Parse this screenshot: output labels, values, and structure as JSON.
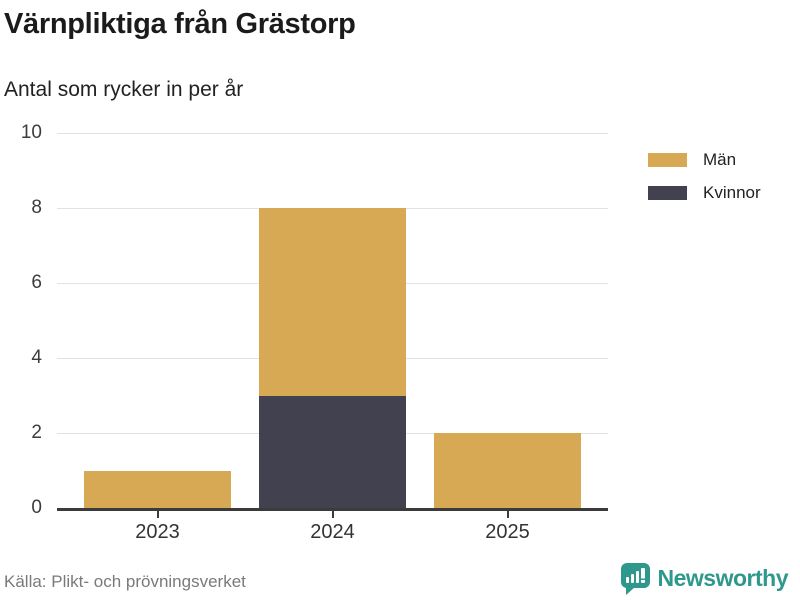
{
  "header": {
    "title": "Värnpliktiga från Grästorp",
    "subtitle": "Antal som rycker in per år"
  },
  "chart_data": {
    "type": "bar",
    "stacked": true,
    "title": "Värnpliktiga från Grästorp",
    "subtitle": "Antal som rycker in per år",
    "categories": [
      "2023",
      "2024",
      "2025"
    ],
    "series": [
      {
        "name": "Män",
        "color": "#d8a955",
        "values": [
          1,
          5,
          2
        ]
      },
      {
        "name": "Kvinnor",
        "color": "#424150",
        "values": [
          0,
          3,
          0
        ]
      }
    ],
    "stack_order_bottom_to_top": [
      "Kvinnor",
      "Män"
    ],
    "totals": [
      1,
      8,
      2
    ],
    "xlabel": "",
    "ylabel": "",
    "ylim": [
      0,
      10
    ],
    "yticks": [
      0,
      2,
      4,
      6,
      8,
      10
    ],
    "grid": true,
    "legend_position": "top-right"
  },
  "footer": {
    "source": "Källa: Plikt- och prövningsverket",
    "brand": "Newsworthy"
  },
  "colors": {
    "men": "#d8a955",
    "women": "#424150",
    "axis": "#3b3b3b",
    "gridline": "#e2e2e2",
    "brand_teal": "#2f988c",
    "source_text": "#7a7a7a"
  }
}
